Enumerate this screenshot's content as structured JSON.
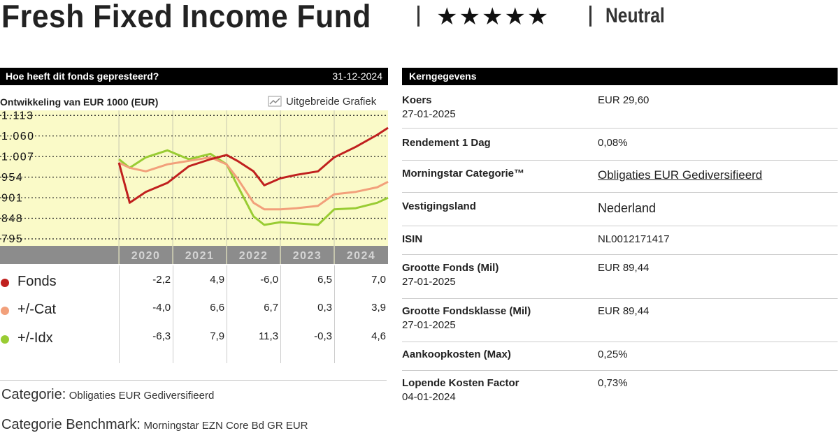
{
  "header": {
    "title": "Fresh Fixed Income Fund",
    "rating": "★★★★★",
    "rating_label": "Neutral"
  },
  "performance": {
    "title": "Hoe heeft dit fonds gepresteerd?",
    "date": "31-12-2024",
    "link": "Uitgebreide Grafiek",
    "category_label": "Categorie:",
    "category": "Obligaties EUR Gediversifieerd",
    "benchmark_label": "Categorie Benchmark:",
    "benchmark": "Morningstar EZN Core Bd GR EUR"
  },
  "chart_data": {
    "type": "line",
    "title": "Ontwikkeling van EUR 1000 (EUR)",
    "x": [
      2020.0,
      2020.2,
      2020.5,
      2020.9,
      2021.3,
      2021.7,
      2022.0,
      2022.2,
      2022.5,
      2022.7,
      2023.0,
      2023.3,
      2023.7,
      2024.0,
      2024.4,
      2024.8,
      2025.0
    ],
    "xlim": [
      2017.79,
      2025.0
    ],
    "xticks": [
      2020,
      2021,
      2022,
      2023,
      2024
    ],
    "ylim": [
      777,
      1126
    ],
    "yticks": [
      {
        "value": 1113,
        "label": "1.113"
      },
      {
        "value": 1060,
        "label": "1.060"
      },
      {
        "value": 1007,
        "label": "1.007"
      },
      954,
      901,
      848,
      795
    ],
    "grid": true,
    "background": "#fafac8",
    "series": [
      {
        "name": "Fonds",
        "color": "#c0201e",
        "values": [
          991,
          888,
          916,
          939,
          982,
          1000,
          1011,
          996,
          969,
          933,
          951,
          960,
          969,
          1005,
          1032,
          1063,
          1081
        ],
        "returns": [
          "-2,2",
          "4,9",
          "-6,0",
          "6,5",
          "7,0"
        ]
      },
      {
        "name": "+/-Cat",
        "color": "#f2a07b",
        "values": [
          991,
          978,
          969,
          987,
          996,
          1005,
          987,
          951,
          888,
          871,
          871,
          874,
          880,
          910,
          916,
          928,
          942
        ],
        "returns": [
          "-4,0",
          "6,6",
          "6,7",
          "0,3",
          "3,9"
        ]
      },
      {
        "name": "+/-Idx",
        "color": "#99cc33",
        "values": [
          1000,
          978,
          1005,
          1023,
          1000,
          1014,
          987,
          933,
          853,
          831,
          838,
          835,
          831,
          871,
          874,
          888,
          901
        ],
        "returns": [
          "-6,3",
          "7,9",
          "11,3",
          "-0,3",
          "4,6"
        ]
      }
    ]
  },
  "key_data": {
    "title": "Kerngegevens",
    "rows": [
      {
        "label": "Koers",
        "date": "27-01-2025",
        "value": "EUR 29,60"
      },
      {
        "label": "Rendement 1 Dag",
        "value": "0,08%"
      },
      {
        "label": "Morningstar Categorie™",
        "value": "Obligaties EUR Gediversifieerd"
      },
      {
        "label": "Vestigingsland",
        "value": "Nederland"
      },
      {
        "label": "ISIN",
        "value": "NL0012171417"
      },
      {
        "label": "Grootte Fonds (Mil)",
        "date": "27-01-2025",
        "value": "EUR 89,44"
      },
      {
        "label": "Grootte Fondsklasse (Mil)",
        "date": "27-01-2025",
        "value": "EUR 89,44"
      },
      {
        "label": "Aankoopkosten (Max)",
        "value": "0,25%"
      },
      {
        "label": "Lopende Kosten Factor",
        "date": "04-01-2024",
        "value": "0,73%"
      }
    ]
  }
}
